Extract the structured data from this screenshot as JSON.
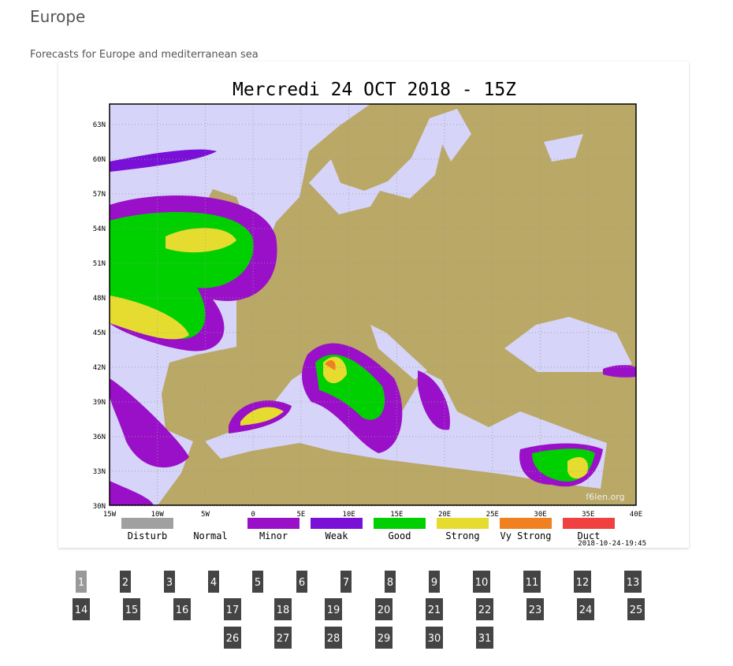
{
  "header": {
    "title": "Europe",
    "subtitle": "Forecasts for Europe and mediterranean sea"
  },
  "map": {
    "title": "Mercredi 24 OCT 2018 - 15Z",
    "lat_ticks": [
      {
        "value": 63,
        "label": "63N"
      },
      {
        "value": 60,
        "label": "60N"
      },
      {
        "value": 57,
        "label": "57N"
      },
      {
        "value": 54,
        "label": "54N"
      },
      {
        "value": 51,
        "label": "51N"
      },
      {
        "value": 48,
        "label": "48N"
      },
      {
        "value": 45,
        "label": "45N"
      },
      {
        "value": 42,
        "label": "42N"
      },
      {
        "value": 39,
        "label": "39N"
      },
      {
        "value": 36,
        "label": "36N"
      },
      {
        "value": 33,
        "label": "33N"
      },
      {
        "value": 30,
        "label": "30N"
      }
    ],
    "lon_ticks": [
      {
        "value": -15,
        "label": "15W"
      },
      {
        "value": -10,
        "label": "10W"
      },
      {
        "value": -5,
        "label": "5W"
      },
      0,
      {
        "value": 5,
        "label": "5E"
      },
      {
        "value": 10,
        "label": "10E"
      },
      {
        "value": 15,
        "label": "15E"
      },
      {
        "value": 20,
        "label": "20E"
      },
      {
        "value": 25,
        "label": "25E"
      },
      {
        "value": 30,
        "label": "30E"
      },
      {
        "value": 35,
        "label": "35E"
      },
      {
        "value": 40,
        "label": "40E"
      }
    ],
    "legend": [
      {
        "label": "Disturb",
        "color": "#a0a0a0"
      },
      {
        "label": "Normal"
      },
      {
        "label": "Minor",
        "color": "#9a10c8"
      },
      {
        "label": "Weak",
        "color": "#7a10d8"
      },
      {
        "label": "Good",
        "color": "#00d000"
      },
      {
        "label": "Strong",
        "color": "#e6dc30"
      },
      {
        "label": "Vy Strong",
        "color": "#f08020"
      },
      {
        "label": "Duct",
        "color": "#f04040"
      }
    ],
    "watermark": "f6len.org",
    "timestamp": "2018-10-24-19:45"
  },
  "pagination": {
    "pages": [
      1,
      2,
      3,
      4,
      5,
      6,
      7,
      8,
      9,
      10,
      11,
      12,
      13,
      14,
      15,
      16,
      17,
      18,
      19,
      20,
      21,
      22,
      23,
      24,
      25,
      26,
      27,
      28,
      29,
      30,
      31
    ],
    "active": 1
  }
}
